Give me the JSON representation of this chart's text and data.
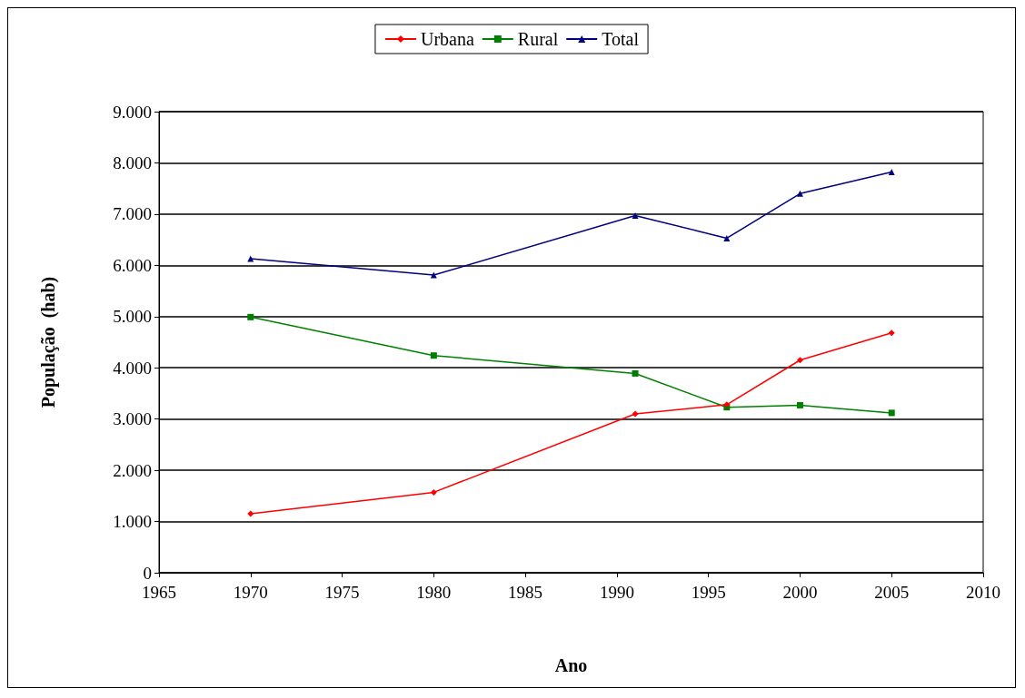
{
  "chart_data": {
    "type": "line",
    "xlabel": "Ano",
    "ylabel": "População  (hab)",
    "x": [
      1970,
      1980,
      1991,
      1996,
      2000,
      2005
    ],
    "series": [
      {
        "name": "Urbana",
        "color": "#ff0000",
        "marker": "diamond",
        "values": [
          1150,
          1570,
          3100,
          3280,
          4150,
          4680
        ]
      },
      {
        "name": "Rural",
        "color": "#008000",
        "marker": "square",
        "values": [
          4990,
          4240,
          3890,
          3230,
          3270,
          3120
        ]
      },
      {
        "name": "Total",
        "color": "#000080",
        "marker": "triangle",
        "values": [
          6130,
          5810,
          6970,
          6530,
          7400,
          7820
        ]
      }
    ],
    "xlim": [
      1965,
      2010
    ],
    "xticks": [
      1965,
      1970,
      1975,
      1980,
      1985,
      1990,
      1995,
      2000,
      2005,
      2010
    ],
    "ylim": [
      0,
      9000
    ],
    "yticks": [
      0,
      {
        "value": 1000,
        "label": "1.000"
      },
      {
        "value": 2000,
        "label": "2.000"
      },
      {
        "value": 3000,
        "label": "3.000"
      },
      {
        "value": 4000,
        "label": "4.000"
      },
      {
        "value": 5000,
        "label": "5.000"
      },
      {
        "value": 6000,
        "label": "6.000"
      },
      {
        "value": 7000,
        "label": "7.000"
      },
      {
        "value": 8000,
        "label": "8.000"
      },
      {
        "value": 9000,
        "label": "9.000"
      }
    ],
    "grid": "y",
    "legend": "top",
    "line_style": "solid"
  }
}
